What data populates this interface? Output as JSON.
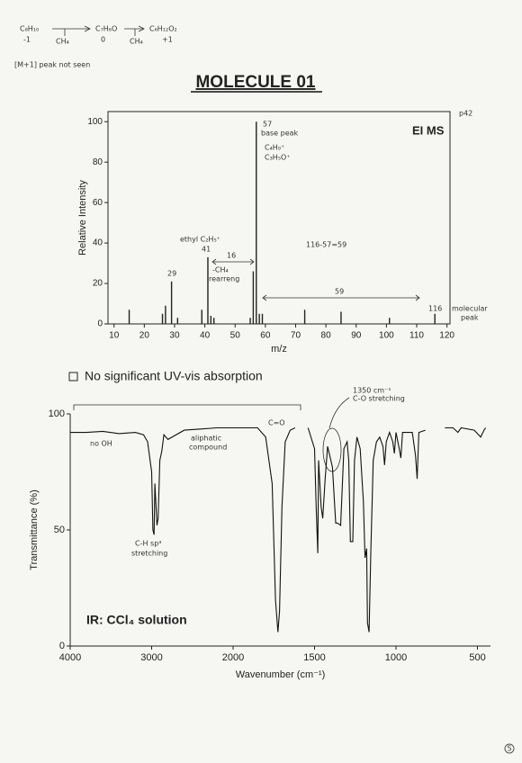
{
  "notes": {
    "formula_1": "C₈H₁₀",
    "delta_1": "-1",
    "loss_1": "CH₄",
    "formula_2": "C₇H₆O",
    "delta_2": "0",
    "loss_2": "CH₄",
    "formula_3": "C₆H₁₂O₂",
    "delta_3": "+1",
    "m_plus_1": "[M+1] peak not seen",
    "page_ref": "p42",
    "page_number": "5"
  },
  "heading": "MOLECULE 01",
  "uv_note": "No significant UV-vis absorption",
  "chart_data": [
    {
      "type": "bar",
      "label": "EI MS",
      "x_label": "m/z",
      "y_label": "Relative Intensity",
      "x": [
        15,
        26,
        27,
        29,
        31,
        39,
        41,
        42,
        43,
        55,
        56,
        57,
        58,
        59,
        73,
        85,
        101,
        116
      ],
      "values": [
        7,
        5,
        9,
        21,
        3,
        7,
        33,
        4,
        3,
        3,
        26,
        100,
        5,
        5,
        7,
        6,
        3,
        5
      ],
      "color": "#222222",
      "xlim": [
        8,
        121
      ],
      "ylim": [
        0,
        105
      ],
      "xticks": [
        10,
        20,
        30,
        40,
        50,
        60,
        70,
        80,
        90,
        100,
        110,
        120
      ],
      "yticks": [
        0,
        20,
        40,
        60,
        80,
        100
      ],
      "annotations": {
        "base_value": "57",
        "base": "base peak",
        "ion_1": "C₄H₉⁺",
        "ion_2": "C₃H₅O⁺",
        "ethyl": "ethyl C₂H₅⁺",
        "ethyl_value": "41",
        "gap_1": "16",
        "loss": "-CH₄",
        "rearr": "rearreng",
        "p29": "29",
        "calc": "116-57=59",
        "gap_2": "59",
        "mol_value": "116",
        "mol_1": "molecular",
        "mol_2": "peak"
      }
    },
    {
      "type": "line",
      "label": "IR: CCl₄ solution",
      "x_label": "Wavenumber (cm⁻¹)",
      "y_label": "Transmittance (%)",
      "color": "#111111",
      "x_scale_break": 2000,
      "xlim": [
        4000,
        420
      ],
      "ylim": [
        0,
        100
      ],
      "xticks": [
        4000,
        3000,
        2000,
        1500,
        1000,
        500
      ],
      "yticks": [
        0,
        50,
        100
      ],
      "x": [
        4000,
        3800,
        3600,
        3400,
        3200,
        3100,
        3050,
        3000,
        2985,
        2970,
        2960,
        2935,
        2920,
        2900,
        2875,
        2850,
        2800,
        2600,
        2400,
        2200,
        2000,
        1900,
        1850,
        1800,
        1760,
        1740,
        1725,
        1715,
        1700,
        1680,
        1650,
        1620,
        1580,
        1540,
        1500,
        1490,
        1480,
        1475,
        1460,
        1450,
        1435,
        1420,
        1390,
        1370,
        1360,
        1340,
        1320,
        1300,
        1290,
        1280,
        1265,
        1255,
        1240,
        1220,
        1200,
        1190,
        1180,
        1175,
        1165,
        1155,
        1140,
        1120,
        1100,
        1080,
        1070,
        1060,
        1040,
        1020,
        1010,
        1000,
        980,
        970,
        960,
        900,
        880,
        870,
        860,
        820,
        760,
        700,
        650,
        620,
        600,
        520,
        480,
        460,
        450
      ],
      "values": [
        92,
        92,
        92.5,
        91.5,
        92,
        91,
        88,
        75,
        50,
        48,
        70,
        52,
        55,
        80,
        84,
        91,
        89,
        93,
        93.5,
        94,
        94,
        94,
        94,
        90,
        70,
        20,
        6,
        15,
        60,
        88,
        93,
        94,
        null,
        94,
        85,
        60,
        40,
        80,
        60,
        55,
        72,
        86,
        77,
        53,
        53,
        52,
        85,
        88,
        80,
        45,
        45,
        80,
        90,
        85,
        62,
        38,
        42,
        10,
        6,
        40,
        80,
        88,
        90,
        86,
        78,
        88,
        92,
        88,
        83,
        92,
        85,
        81,
        92,
        92,
        82,
        72,
        92,
        93,
        null,
        94,
        94,
        92,
        94,
        93,
        90,
        93,
        94
      ],
      "annotations": {
        "no_oh": "no OH",
        "aliph_1": "aliphatic",
        "aliph_2": "compound",
        "co": "C=O",
        "co_wn": "1350 cm⁻¹",
        "co_str": "C-O stretching",
        "ch_1": "C-H sp³",
        "ch_2": "stretching"
      }
    }
  ]
}
